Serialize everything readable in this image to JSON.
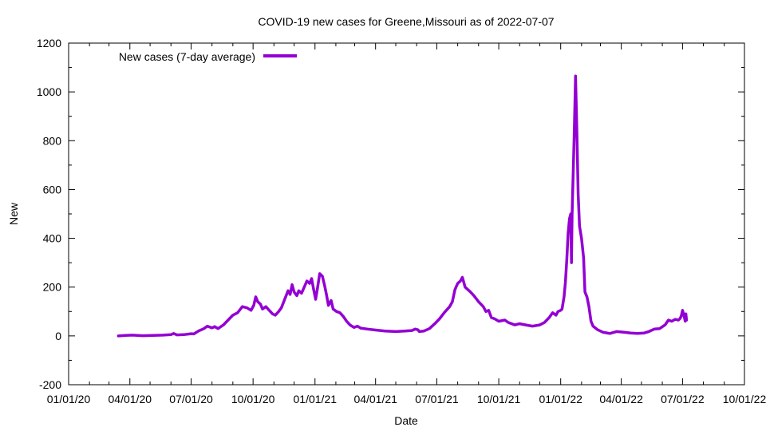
{
  "chart_data": {
    "type": "line",
    "title": "COVID-19 new cases for Greene,Missouri as of 2022-07-07",
    "xlabel": "Date",
    "ylabel": "New",
    "ylim": [
      -200,
      1200
    ],
    "xlim": [
      "2020-01-01",
      "2022-10-01"
    ],
    "x_tick_labels": [
      "01/01/20",
      "04/01/20",
      "07/01/20",
      "10/01/20",
      "01/01/21",
      "04/01/21",
      "07/01/21",
      "10/01/21",
      "01/01/22",
      "04/01/22",
      "07/01/22",
      "10/01/22"
    ],
    "y_ticks": [
      -200,
      0,
      200,
      400,
      600,
      800,
      1000,
      1200
    ],
    "grid": false,
    "legend": "top-left",
    "series": [
      {
        "name": "New cases (7-day average)",
        "color": "#9400D3",
        "points": [
          [
            "2020-03-15",
            0
          ],
          [
            "2020-03-25",
            2
          ],
          [
            "2020-04-05",
            3
          ],
          [
            "2020-04-20",
            1
          ],
          [
            "2020-05-05",
            2
          ],
          [
            "2020-05-20",
            3
          ],
          [
            "2020-06-01",
            5
          ],
          [
            "2020-06-05",
            10
          ],
          [
            "2020-06-10",
            4
          ],
          [
            "2020-06-20",
            5
          ],
          [
            "2020-07-01",
            9
          ],
          [
            "2020-07-05",
            8
          ],
          [
            "2020-07-12",
            20
          ],
          [
            "2020-07-20",
            30
          ],
          [
            "2020-07-25",
            40
          ],
          [
            "2020-08-01",
            33
          ],
          [
            "2020-08-05",
            38
          ],
          [
            "2020-08-10",
            30
          ],
          [
            "2020-08-18",
            45
          ],
          [
            "2020-08-25",
            65
          ],
          [
            "2020-09-01",
            85
          ],
          [
            "2020-09-08",
            95
          ],
          [
            "2020-09-15",
            120
          ],
          [
            "2020-09-22",
            115
          ],
          [
            "2020-09-28",
            105
          ],
          [
            "2020-10-02",
            125
          ],
          [
            "2020-10-05",
            160
          ],
          [
            "2020-10-08",
            140
          ],
          [
            "2020-10-12",
            130
          ],
          [
            "2020-10-15",
            110
          ],
          [
            "2020-10-20",
            120
          ],
          [
            "2020-10-25",
            105
          ],
          [
            "2020-10-30",
            90
          ],
          [
            "2020-11-03",
            85
          ],
          [
            "2020-11-08",
            100
          ],
          [
            "2020-11-12",
            115
          ],
          [
            "2020-11-17",
            150
          ],
          [
            "2020-11-22",
            185
          ],
          [
            "2020-11-25",
            170
          ],
          [
            "2020-11-28",
            210
          ],
          [
            "2020-12-01",
            180
          ],
          [
            "2020-12-05",
            165
          ],
          [
            "2020-12-08",
            185
          ],
          [
            "2020-12-12",
            175
          ],
          [
            "2020-12-16",
            200
          ],
          [
            "2020-12-20",
            225
          ],
          [
            "2020-12-24",
            215
          ],
          [
            "2020-12-27",
            235
          ],
          [
            "2020-12-30",
            190
          ],
          [
            "2021-01-02",
            150
          ],
          [
            "2021-01-05",
            200
          ],
          [
            "2021-01-08",
            255
          ],
          [
            "2021-01-12",
            245
          ],
          [
            "2021-01-15",
            210
          ],
          [
            "2021-01-18",
            170
          ],
          [
            "2021-01-21",
            125
          ],
          [
            "2021-01-25",
            145
          ],
          [
            "2021-01-28",
            110
          ],
          [
            "2021-02-02",
            100
          ],
          [
            "2021-02-07",
            95
          ],
          [
            "2021-02-12",
            80
          ],
          [
            "2021-02-17",
            60
          ],
          [
            "2021-02-22",
            45
          ],
          [
            "2021-02-28",
            35
          ],
          [
            "2021-03-05",
            40
          ],
          [
            "2021-03-10",
            32
          ],
          [
            "2021-03-20",
            28
          ],
          [
            "2021-04-01",
            24
          ],
          [
            "2021-04-15",
            20
          ],
          [
            "2021-05-01",
            18
          ],
          [
            "2021-05-15",
            20
          ],
          [
            "2021-05-25",
            22
          ],
          [
            "2021-05-30",
            28
          ],
          [
            "2021-06-03",
            25
          ],
          [
            "2021-06-05",
            18
          ],
          [
            "2021-06-12",
            20
          ],
          [
            "2021-06-20",
            30
          ],
          [
            "2021-06-28",
            50
          ],
          [
            "2021-07-05",
            70
          ],
          [
            "2021-07-12",
            95
          ],
          [
            "2021-07-20",
            120
          ],
          [
            "2021-07-24",
            140
          ],
          [
            "2021-07-28",
            190
          ],
          [
            "2021-08-01",
            215
          ],
          [
            "2021-08-05",
            225
          ],
          [
            "2021-08-08",
            240
          ],
          [
            "2021-08-12",
            200
          ],
          [
            "2021-08-16",
            190
          ],
          [
            "2021-08-20",
            180
          ],
          [
            "2021-08-25",
            165
          ],
          [
            "2021-09-01",
            140
          ],
          [
            "2021-09-08",
            120
          ],
          [
            "2021-09-12",
            100
          ],
          [
            "2021-09-16",
            105
          ],
          [
            "2021-09-20",
            75
          ],
          [
            "2021-09-25",
            70
          ],
          [
            "2021-10-01",
            60
          ],
          [
            "2021-10-10",
            65
          ],
          [
            "2021-10-15",
            55
          ],
          [
            "2021-10-25",
            45
          ],
          [
            "2021-11-01",
            50
          ],
          [
            "2021-11-10",
            45
          ],
          [
            "2021-11-20",
            40
          ],
          [
            "2021-12-01",
            45
          ],
          [
            "2021-12-08",
            55
          ],
          [
            "2021-12-15",
            75
          ],
          [
            "2021-12-20",
            95
          ],
          [
            "2021-12-25",
            85
          ],
          [
            "2021-12-28",
            100
          ],
          [
            "2022-01-01",
            105
          ],
          [
            "2022-01-03",
            110
          ],
          [
            "2022-01-06",
            160
          ],
          [
            "2022-01-08",
            220
          ],
          [
            "2022-01-10",
            310
          ],
          [
            "2022-01-12",
            420
          ],
          [
            "2022-01-14",
            480
          ],
          [
            "2022-01-16",
            500
          ],
          [
            "2022-01-17",
            300
          ],
          [
            "2022-01-18",
            500
          ],
          [
            "2022-01-21",
            820
          ],
          [
            "2022-01-23",
            1065
          ],
          [
            "2022-01-25",
            850
          ],
          [
            "2022-01-27",
            580
          ],
          [
            "2022-01-29",
            450
          ],
          [
            "2022-02-01",
            400
          ],
          [
            "2022-02-04",
            320
          ],
          [
            "2022-02-06",
            180
          ],
          [
            "2022-02-09",
            160
          ],
          [
            "2022-02-12",
            120
          ],
          [
            "2022-02-15",
            60
          ],
          [
            "2022-02-18",
            40
          ],
          [
            "2022-02-25",
            25
          ],
          [
            "2022-03-05",
            15
          ],
          [
            "2022-03-15",
            10
          ],
          [
            "2022-03-25",
            18
          ],
          [
            "2022-04-05",
            15
          ],
          [
            "2022-04-15",
            12
          ],
          [
            "2022-04-25",
            10
          ],
          [
            "2022-05-05",
            12
          ],
          [
            "2022-05-12",
            18
          ],
          [
            "2022-05-20",
            28
          ],
          [
            "2022-05-28",
            30
          ],
          [
            "2022-06-05",
            45
          ],
          [
            "2022-06-10",
            65
          ],
          [
            "2022-06-15",
            60
          ],
          [
            "2022-06-20",
            68
          ],
          [
            "2022-06-25",
            65
          ],
          [
            "2022-06-27",
            70
          ],
          [
            "2022-06-29",
            80
          ],
          [
            "2022-07-01",
            105
          ],
          [
            "2022-07-03",
            85
          ],
          [
            "2022-07-05",
            60
          ],
          [
            "2022-07-06",
            90
          ],
          [
            "2022-07-07",
            65
          ]
        ]
      }
    ]
  }
}
